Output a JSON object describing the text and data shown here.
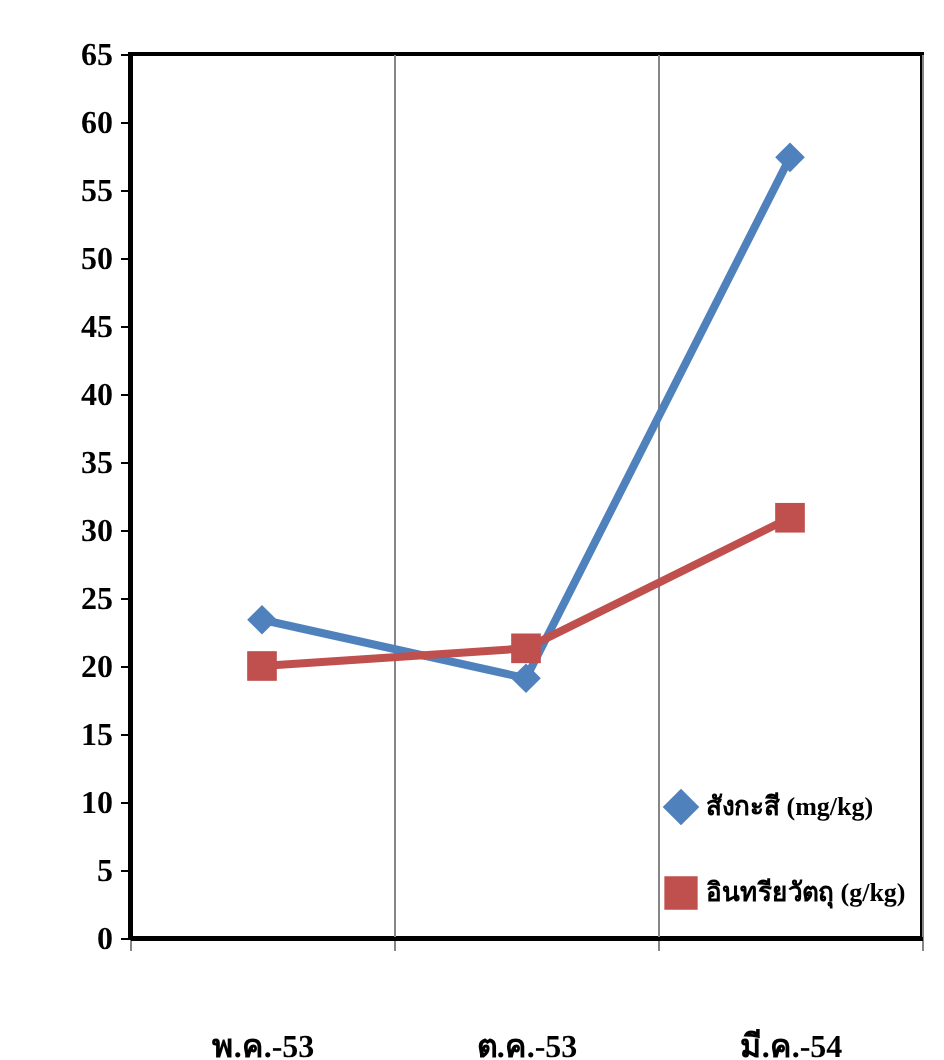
{
  "chart_data": {
    "type": "line",
    "categories": [
      "พ.ค.-53",
      "ต.ค.-53",
      "มี.ค.-54"
    ],
    "series": [
      {
        "name": "สังกะสี (mg/kg)",
        "color": "#4f81bd",
        "marker": "diamond",
        "values": [
          23.4,
          19.1,
          57.4
        ]
      },
      {
        "name": "อินทรียวัตถุ (g/kg)",
        "color": "#c0504d",
        "marker": "square",
        "values": [
          20,
          21.3,
          30.9
        ]
      }
    ],
    "ylim": [
      0,
      65
    ],
    "yticks": [
      0,
      5,
      10,
      15,
      20,
      25,
      30,
      35,
      40,
      45,
      50,
      55,
      60,
      65
    ],
    "grid": "x",
    "legend": "bottom right"
  }
}
